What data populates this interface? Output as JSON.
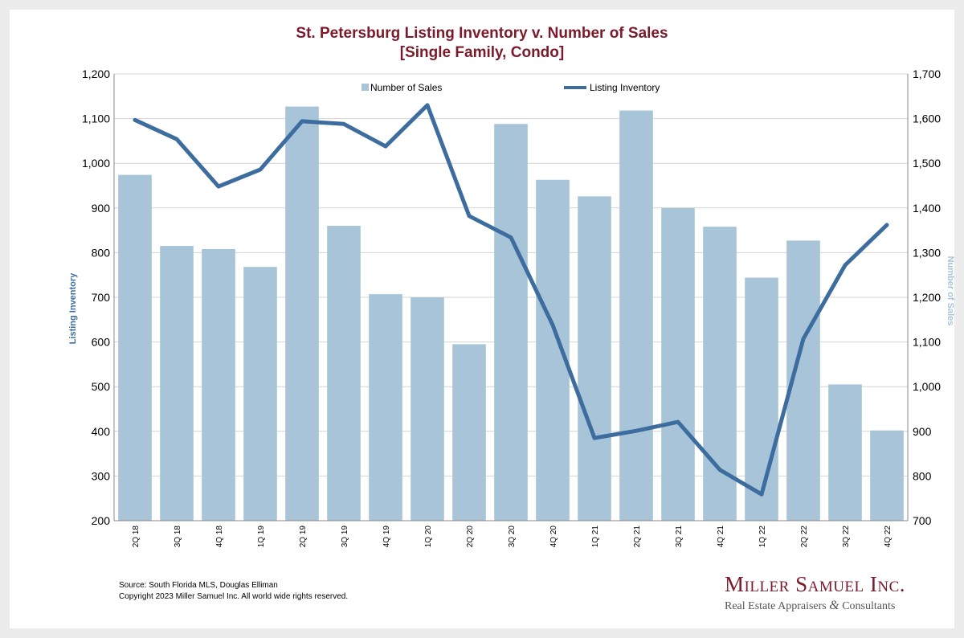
{
  "title": {
    "line1": "St. Petersburg Listing Inventory v. Number of Sales",
    "line2": "[Single Family, Condo]"
  },
  "footer": {
    "source": "Source: South Florida MLS, Douglas Elliman",
    "copyright": "Copyright 2023 Miller Samuel Inc.  All world wide rights reserved."
  },
  "logo": {
    "name": "Miller Samuel Inc.",
    "tagline_left": "Real Estate Appraisers ",
    "tagline_amp": "&",
    "tagline_right": " Consultants"
  },
  "colors": {
    "bar": "#a8c4d9",
    "line": "#3d6d9e",
    "title": "#7a1a2a",
    "axis_left_label": "#3d6d9e",
    "axis_right_label": "#a8c4d9"
  },
  "chart_data": {
    "type": "bar",
    "categories": [
      "2Q 18",
      "3Q 18",
      "4Q 18",
      "1Q 19",
      "2Q 19",
      "3Q 19",
      "4Q 19",
      "1Q 20",
      "2Q 20",
      "3Q 20",
      "4Q 20",
      "1Q 21",
      "2Q 21",
      "3Q 21",
      "4Q 21",
      "1Q 22",
      "2Q 22",
      "3Q 22",
      "4Q 22"
    ],
    "series": [
      {
        "name": "Number of Sales",
        "type": "bar",
        "axis": "right",
        "values": [
          1474,
          1315,
          1308,
          1268,
          1627,
          1360,
          1207,
          1200,
          1095,
          1588,
          1463,
          1426,
          1618,
          1400,
          1358,
          1244,
          1327,
          1005,
          902
        ]
      },
      {
        "name": "Listing Inventory",
        "type": "line",
        "axis": "left",
        "values": [
          1097,
          1054,
          948,
          986,
          1094,
          1088,
          1038,
          1130,
          882,
          834,
          638,
          385,
          401,
          421,
          314,
          259,
          607,
          772,
          862
        ]
      }
    ],
    "ylabel_left": "Listing Inventory",
    "ylabel_right": "Number of Sales",
    "ylim_left": [
      200,
      1200
    ],
    "ylim_right": [
      700,
      1700
    ],
    "yticks_left": [
      "200",
      "300",
      "400",
      "500",
      "600",
      "700",
      "800",
      "900",
      "1,000",
      "1,100",
      "1,200"
    ],
    "yticks_right": [
      "700",
      "800",
      "900",
      "1,000",
      "1,100",
      "1,200",
      "1,300",
      "1,400",
      "1,500",
      "1,600",
      "1,700"
    ],
    "grid": true,
    "legend": "top-center"
  }
}
